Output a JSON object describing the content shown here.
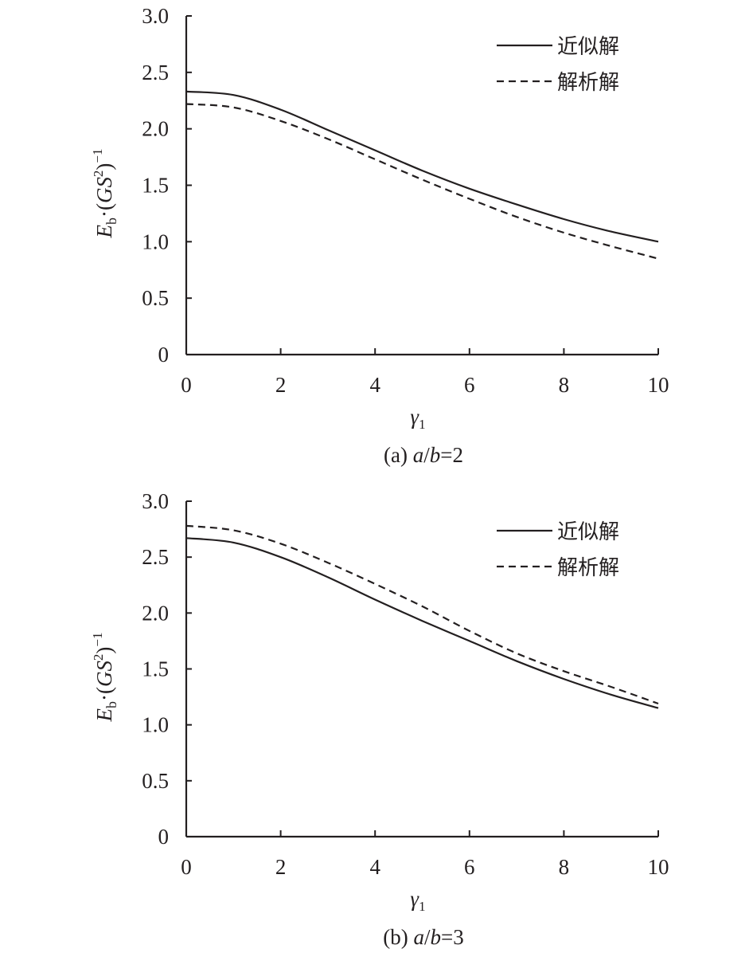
{
  "chart_data": [
    {
      "type": "line",
      "panel": "a",
      "caption": {
        "prefix": "(a) ",
        "var1": "a",
        "sep": "/",
        "var2": "b",
        "rest": "=2"
      },
      "title": "(a) a/b=2",
      "xlabel": "γ1",
      "ylabel": "Eb·(GS²)⁻¹",
      "xlim": [
        0,
        10
      ],
      "ylim": [
        0,
        3.0
      ],
      "xticks": [
        "0",
        "2",
        "4",
        "6",
        "8",
        "10"
      ],
      "yticks": [
        "0",
        "0.5",
        "1.0",
        "1.5",
        "2.0",
        "2.5",
        "3.0"
      ],
      "grid": false,
      "legend_position": "upper right",
      "x": [
        0,
        1,
        2,
        3,
        4,
        5,
        6,
        7,
        8,
        9,
        10
      ],
      "series": [
        {
          "name": "近似解",
          "style": "solid",
          "values": [
            2.33,
            2.3,
            2.17,
            1.99,
            1.81,
            1.63,
            1.47,
            1.33,
            1.2,
            1.09,
            1.0
          ]
        },
        {
          "name": "解析解",
          "style": "dashed",
          "values": [
            2.22,
            2.19,
            2.07,
            1.91,
            1.73,
            1.55,
            1.38,
            1.22,
            1.08,
            0.96,
            0.85
          ]
        }
      ]
    },
    {
      "type": "line",
      "panel": "b",
      "caption": {
        "prefix": "(b) ",
        "var1": "a",
        "sep": "/",
        "var2": "b",
        "rest": "=3"
      },
      "title": "(b) a/b=3",
      "xlabel": "γ1",
      "ylabel": "Eb·(GS²)⁻¹",
      "xlim": [
        0,
        10
      ],
      "ylim": [
        0,
        3.0
      ],
      "xticks": [
        "0",
        "2",
        "4",
        "6",
        "8",
        "10"
      ],
      "yticks": [
        "0",
        "0.5",
        "1.0",
        "1.5",
        "2.0",
        "2.5",
        "3.0"
      ],
      "grid": false,
      "legend_position": "upper right",
      "x": [
        0,
        1,
        2,
        3,
        4,
        5,
        6,
        7,
        8,
        9,
        10
      ],
      "series": [
        {
          "name": "近似解",
          "style": "solid",
          "values": [
            2.67,
            2.63,
            2.5,
            2.32,
            2.12,
            1.93,
            1.75,
            1.57,
            1.41,
            1.27,
            1.15
          ]
        },
        {
          "name": "解析解",
          "style": "dashed",
          "values": [
            2.78,
            2.74,
            2.62,
            2.45,
            2.26,
            2.06,
            1.84,
            1.64,
            1.48,
            1.34,
            1.19
          ]
        }
      ]
    }
  ],
  "labels": {
    "ylabel_main": "E",
    "ylabel_sub": "b",
    "ylabel_mid": "·(",
    "ylabel_italic": "GS",
    "ylabel_sup2": "2",
    "ylabel_close": ")",
    "ylabel_supm1": "−1",
    "xlabel_main": "γ",
    "xlabel_sub": "1"
  },
  "colors": {
    "ink": "#231f20",
    "background": "#ffffff"
  }
}
